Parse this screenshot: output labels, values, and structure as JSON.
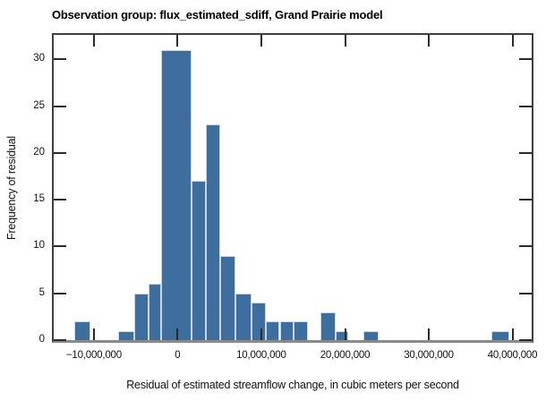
{
  "chart_data": {
    "type": "bar",
    "subtype": "histogram",
    "title": "Observation group: flux_estimated_sdiff, Grand Prairie model",
    "xlabel": "Residual of estimated streamflow change, in cubic meters per second",
    "ylabel": "Frequency of residual",
    "xlim": [
      -14800000,
      42300000
    ],
    "ylim": [
      0,
      32.6
    ],
    "grid": false,
    "legend": "none",
    "bar_color": "#3d6e9e",
    "bar_edge_color": "#c9d6e8",
    "x_ticks": [
      {
        "value": -10000000,
        "label": "−10,000,000"
      },
      {
        "value": 0,
        "label": "0"
      },
      {
        "value": 10000000,
        "label": "10,000,000"
      },
      {
        "value": 20000000,
        "label": "20,000,000"
      },
      {
        "value": 30000000,
        "label": "30,000,000"
      },
      {
        "value": 40000000,
        "label": "40,000,000"
      }
    ],
    "y_ticks": [
      {
        "value": 0,
        "label": "0"
      },
      {
        "value": 5,
        "label": "5"
      },
      {
        "value": 10,
        "label": "10"
      },
      {
        "value": 15,
        "label": "15"
      },
      {
        "value": 20,
        "label": "20"
      },
      {
        "value": 25,
        "label": "25"
      },
      {
        "value": 30,
        "label": "30"
      }
    ],
    "bins": [
      {
        "x0": -12300000,
        "x1": -10400000,
        "count": 2
      },
      {
        "x0": -7100000,
        "x1": -5200000,
        "count": 1
      },
      {
        "x0": -5200000,
        "x1": -3450000,
        "count": 5
      },
      {
        "x0": -3450000,
        "x1": -1950000,
        "count": 6
      },
      {
        "x0": -1950000,
        "x1": 1700000,
        "count": 31
      },
      {
        "x0": 1700000,
        "x1": 3400000,
        "count": 17
      },
      {
        "x0": 3400000,
        "x1": 5100000,
        "count": 23
      },
      {
        "x0": 5100000,
        "x1": 6900000,
        "count": 9
      },
      {
        "x0": 6900000,
        "x1": 8800000,
        "count": 5
      },
      {
        "x0": 8800000,
        "x1": 10500000,
        "count": 4
      },
      {
        "x0": 10500000,
        "x1": 12200000,
        "count": 2
      },
      {
        "x0": 12200000,
        "x1": 13900000,
        "count": 2
      },
      {
        "x0": 13900000,
        "x1": 15600000,
        "count": 2
      },
      {
        "x0": 17100000,
        "x1": 18900000,
        "count": 3
      },
      {
        "x0": 18900000,
        "x1": 20400000,
        "count": 1
      },
      {
        "x0": 22200000,
        "x1": 24000000,
        "count": 1
      },
      {
        "x0": 37500000,
        "x1": 39600000,
        "count": 1
      }
    ]
  }
}
